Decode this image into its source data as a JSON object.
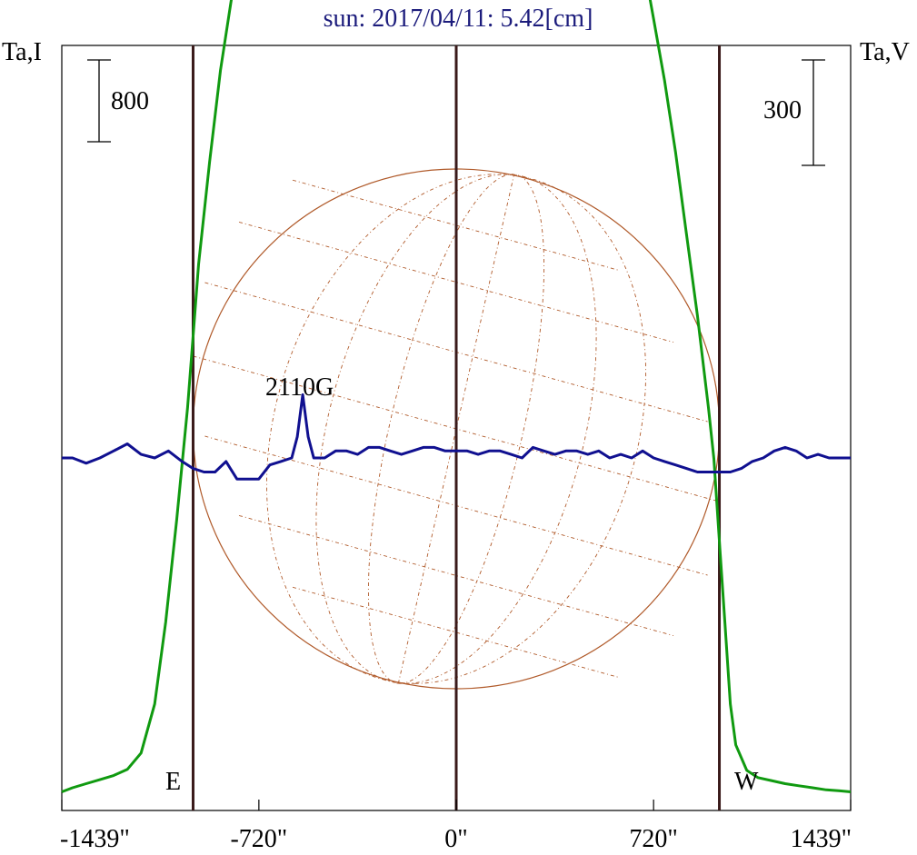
{
  "title": "sun: 2017/04/11: 5.42[cm]",
  "left_axis_label": "Ta,I",
  "right_axis_label": "Ta,V",
  "scale_bar_left": "800",
  "scale_bar_right": "300",
  "limb_labels": {
    "east": "E",
    "west": "W"
  },
  "annotation": "2110G",
  "x_ticks": [
    "-1439\"",
    "-720\"",
    "0\"",
    "720\"",
    "1439\""
  ],
  "colors": {
    "title": "#1c1c7c",
    "stokes_i": "#109a10",
    "stokes_v": "#101090",
    "limb_lines": "#3a1a1a",
    "disk": "#b05a2a",
    "frame": "#000000"
  },
  "chart_data": {
    "type": "line",
    "title": "sun: 2017/04/11: 5.42[cm]",
    "xlim": [
      -1439,
      1439
    ],
    "x_ticks": [
      -1439,
      -720,
      0,
      720,
      1439
    ],
    "limb_x": [
      -960,
      960
    ],
    "series": [
      {
        "x": [
          -1439,
          -1400,
          -1350,
          -1300,
          -1250,
          -1200,
          -1150,
          -1100,
          -1060,
          -1020,
          -980,
          -960,
          -940,
          -900,
          -860,
          -820,
          -780,
          -740,
          -720,
          -700,
          -680,
          -660,
          -640,
          -620,
          -600,
          -580,
          -560,
          -540,
          -520,
          -500,
          -480,
          -440,
          -400,
          -360,
          -320,
          -280,
          -240,
          -200,
          -160,
          -120,
          -80,
          -40,
          0,
          40,
          80,
          120,
          160,
          200,
          240,
          280,
          320,
          360,
          400,
          440,
          480,
          520,
          560,
          600,
          620,
          640,
          660,
          680,
          700,
          720,
          740,
          760,
          800,
          840,
          880,
          920,
          940,
          960,
          980,
          1000,
          1020,
          1060,
          1100,
          1150,
          1200,
          1250,
          1300,
          1350,
          1400,
          1439
        ],
        "values": [
          40,
          80,
          120,
          160,
          200,
          260,
          420,
          900,
          1700,
          2700,
          3800,
          4500,
          5200,
          6200,
          7100,
          7800,
          8400,
          8900,
          9000,
          9300,
          9800,
          10600,
          11500,
          10900,
          9400,
          9400,
          9850,
          9750,
          9700,
          9500,
          9650,
          9500,
          9750,
          9700,
          9650,
          9850,
          9600,
          9600,
          9750,
          9600,
          9700,
          9600,
          9600,
          9650,
          9700,
          9800,
          9650,
          9700,
          9700,
          9500,
          9700,
          9450,
          9400,
          9500,
          9600,
          9800,
          9750,
          9400,
          9000,
          8800,
          8500,
          8200,
          7900,
          7600,
          7300,
          7000,
          6300,
          5500,
          4700,
          3800,
          3300,
          2500,
          1700,
          900,
          500,
          250,
          180,
          150,
          120,
          100,
          80,
          60,
          50,
          40
        ]
      },
      {
        "x": [
          -1439,
          -1400,
          -1350,
          -1300,
          -1250,
          -1200,
          -1150,
          -1100,
          -1050,
          -1000,
          -960,
          -920,
          -880,
          -840,
          -800,
          -760,
          -720,
          -680,
          -640,
          -600,
          -580,
          -560,
          -540,
          -520,
          -480,
          -440,
          -400,
          -360,
          -320,
          -280,
          -240,
          -200,
          -160,
          -120,
          -80,
          -40,
          0,
          40,
          80,
          120,
          160,
          200,
          240,
          280,
          320,
          360,
          400,
          440,
          480,
          520,
          560,
          600,
          640,
          680,
          720,
          760,
          800,
          840,
          880,
          920,
          960,
          1000,
          1040,
          1080,
          1120,
          1160,
          1200,
          1240,
          1280,
          1320,
          1360,
          1400,
          1439
        ],
        "values": [
          0,
          0,
          -15,
          0,
          20,
          40,
          10,
          0,
          20,
          -10,
          -30,
          -40,
          -40,
          -10,
          -60,
          -60,
          -60,
          -20,
          -10,
          0,
          60,
          180,
          60,
          0,
          0,
          20,
          20,
          10,
          30,
          30,
          20,
          10,
          20,
          30,
          30,
          20,
          20,
          20,
          10,
          20,
          20,
          10,
          0,
          30,
          20,
          10,
          20,
          20,
          10,
          20,
          0,
          10,
          0,
          20,
          0,
          -10,
          -20,
          -30,
          -40,
          -40,
          -40,
          -40,
          -30,
          -10,
          0,
          20,
          30,
          20,
          0,
          10,
          0,
          0,
          0
        ]
      }
    ]
  }
}
